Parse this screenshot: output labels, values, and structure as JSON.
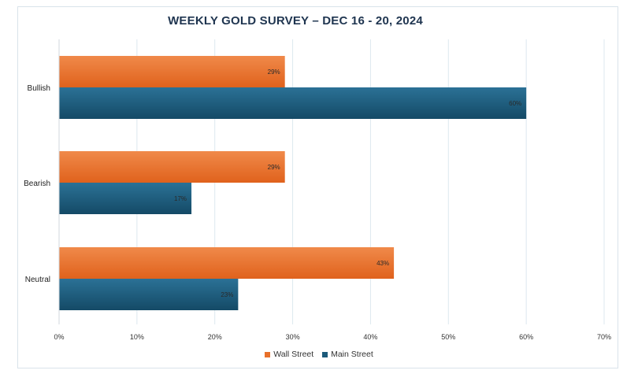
{
  "chart_data": {
    "type": "bar",
    "orientation": "horizontal",
    "title": "WEEKLY GOLD SURVEY – DEC 16 - 20, 2024",
    "categories": [
      "Bullish",
      "Bearish",
      "Neutral"
    ],
    "series": [
      {
        "name": "Wall Street",
        "values": [
          29,
          29,
          43
        ],
        "color": "#e8702a"
      },
      {
        "name": "Main Street",
        "values": [
          60,
          17,
          23
        ],
        "color": "#1b5a7a"
      }
    ],
    "data_labels": [
      [
        "29%",
        "29%",
        "43%"
      ],
      [
        "60%",
        "17%",
        "23%"
      ]
    ],
    "xlim": [
      0,
      70
    ],
    "x_ticks": [
      0,
      10,
      20,
      30,
      40,
      50,
      60,
      70
    ],
    "x_tick_labels": [
      "0%",
      "10%",
      "20%",
      "30%",
      "40%",
      "50%",
      "60%",
      "70%"
    ],
    "grid": "vertical",
    "legend_position": "bottom"
  }
}
